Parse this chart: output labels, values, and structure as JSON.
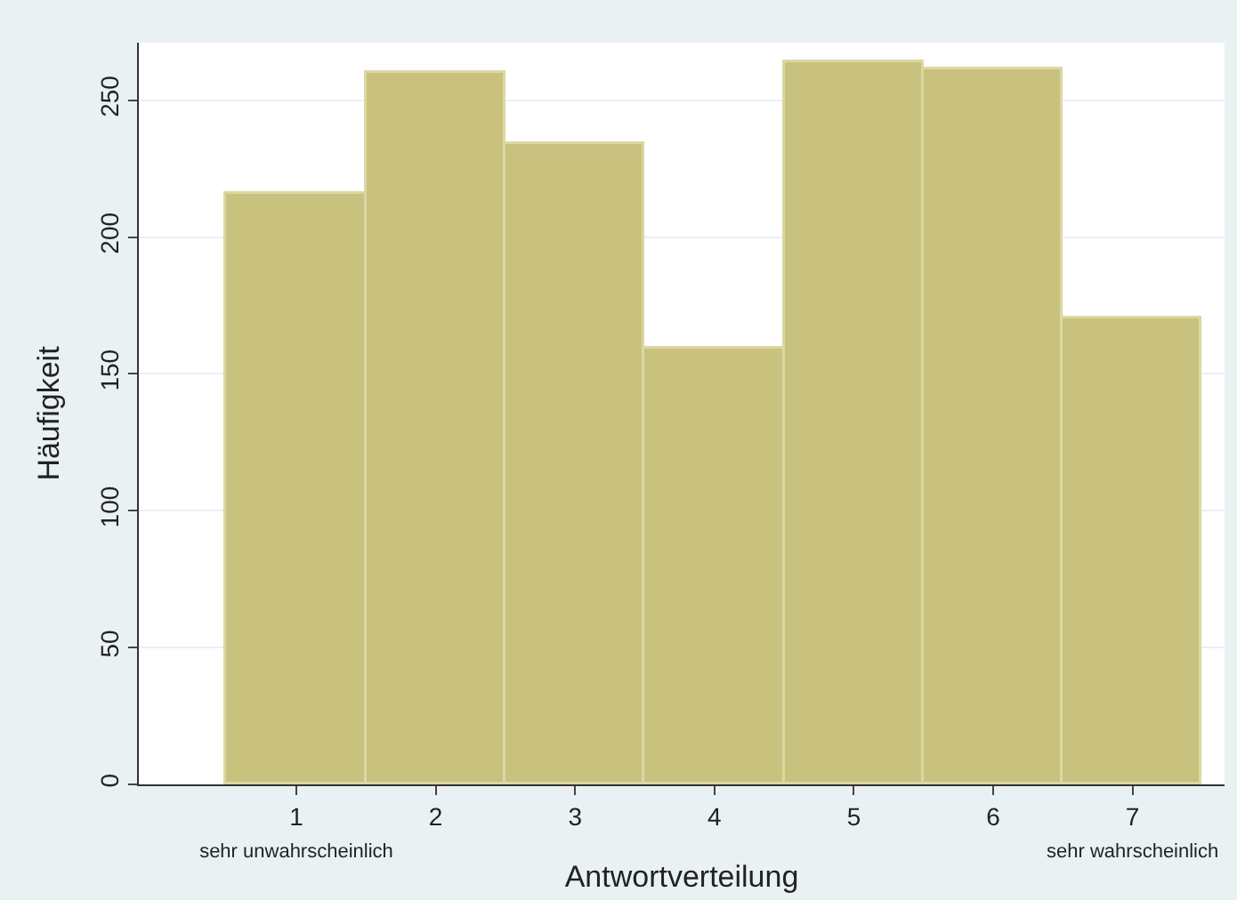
{
  "chart_data": {
    "type": "histogram",
    "xlabel": "Antwortverteilung",
    "ylabel": "Häufigkeit",
    "bins": [
      0.5,
      1.5,
      2.5,
      3.5,
      4.5,
      5.5,
      6.5,
      7.5
    ],
    "values": [
      216,
      260,
      234,
      159,
      264,
      261,
      170
    ],
    "color": "#c9c27f",
    "xlim": [
      -0.13,
      7.66
    ],
    "xticks": [
      {
        "value": 1,
        "label": "1\nsehr unwahrscheinlich"
      },
      2,
      3,
      4,
      5,
      6,
      {
        "value": 7,
        "label": "7\nsehr wahrscheinlich"
      }
    ],
    "ylim": [
      0,
      271
    ],
    "yticks": [
      0,
      50,
      100,
      150,
      200,
      250
    ],
    "grid": "y"
  }
}
